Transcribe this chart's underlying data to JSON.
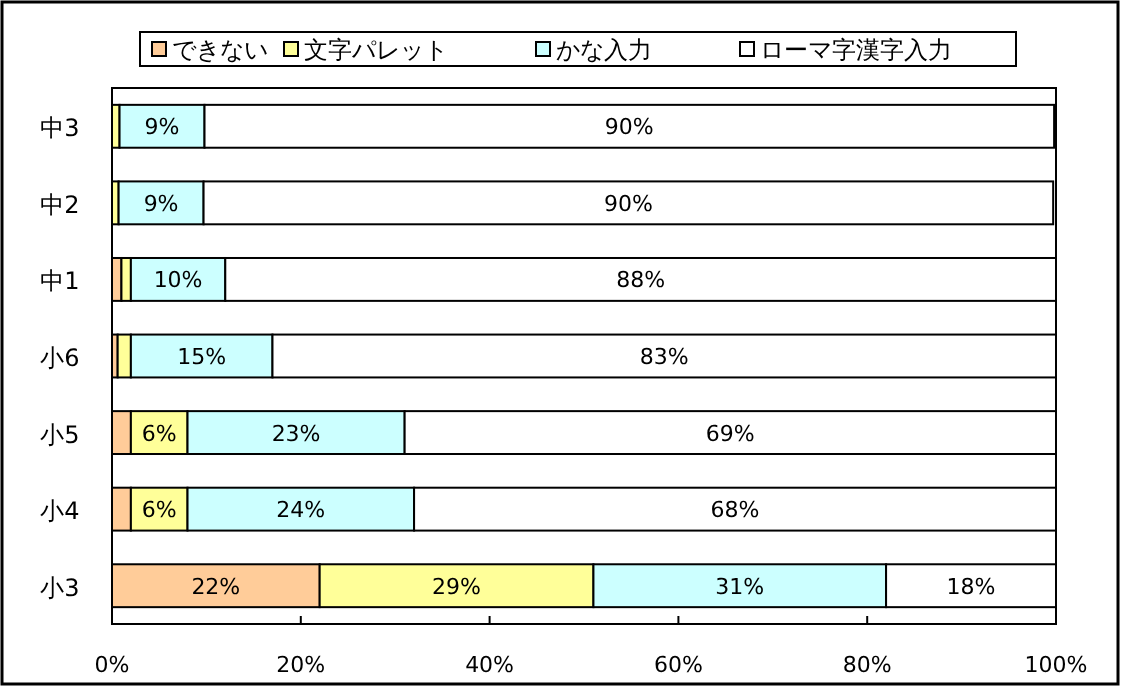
{
  "chart_data": {
    "type": "bar",
    "orientation": "horizontal",
    "stacked": true,
    "categories": [
      "中3",
      "中2",
      "中1",
      "小6",
      "小5",
      "小4",
      "小3"
    ],
    "series": [
      {
        "name": "できない",
        "color": "#ffcc99",
        "values": [
          null,
          null,
          1,
          0.6,
          2,
          2,
          22
        ],
        "value_labels": [
          null,
          null,
          null,
          null,
          null,
          null,
          "22%"
        ]
      },
      {
        "name": "文字パレット",
        "color": "#ffff99",
        "values": [
          0.8,
          0.7,
          1,
          1.4,
          6,
          6,
          29
        ],
        "value_labels": [
          null,
          null,
          null,
          null,
          "6%",
          "6%",
          "29%"
        ]
      },
      {
        "name": "かな入力",
        "color": "#ccffff",
        "values": [
          9,
          9,
          10,
          15,
          23,
          24,
          31
        ],
        "value_labels": [
          "9%",
          "9%",
          "10%",
          "15%",
          "23%",
          "24%",
          "31%"
        ]
      },
      {
        "name": "ローマ字漢字入力",
        "color": "#ffffff",
        "values": [
          90,
          90,
          88,
          83,
          69,
          68,
          18
        ],
        "value_labels": [
          "90%",
          "90%",
          "88%",
          "83%",
          "69%",
          "68%",
          "18%"
        ]
      }
    ],
    "xlim": [
      0,
      100
    ],
    "xticks": [
      {
        "value": 0,
        "label": "0%"
      },
      {
        "value": 20,
        "label": "20%"
      },
      {
        "value": 40,
        "label": "40%"
      },
      {
        "value": 60,
        "label": "60%"
      },
      {
        "value": 80,
        "label": "80%"
      },
      {
        "value": 100,
        "label": "100%"
      }
    ],
    "legend": "top",
    "grid": false
  }
}
